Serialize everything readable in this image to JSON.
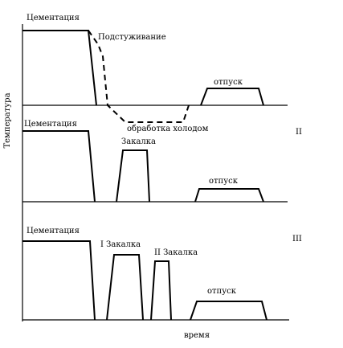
{
  "axes": {
    "y_label": "Температура",
    "x_label": "время"
  },
  "panels": [
    {
      "labels": {
        "carburizing": "Цементация",
        "precooling": "Подстуживание",
        "tempering": "отпуск",
        "cold_treatment": "обработка холодом"
      }
    },
    {
      "number": "II",
      "labels": {
        "carburizing": "Цементация",
        "quenching": "Закалка",
        "tempering": "отпуск"
      }
    },
    {
      "number": "III",
      "labels": {
        "carburizing": "Цементация",
        "quenching_1": "I Закалка",
        "quenching_2": "II Закалка",
        "tempering": "отпуск"
      }
    }
  ]
}
